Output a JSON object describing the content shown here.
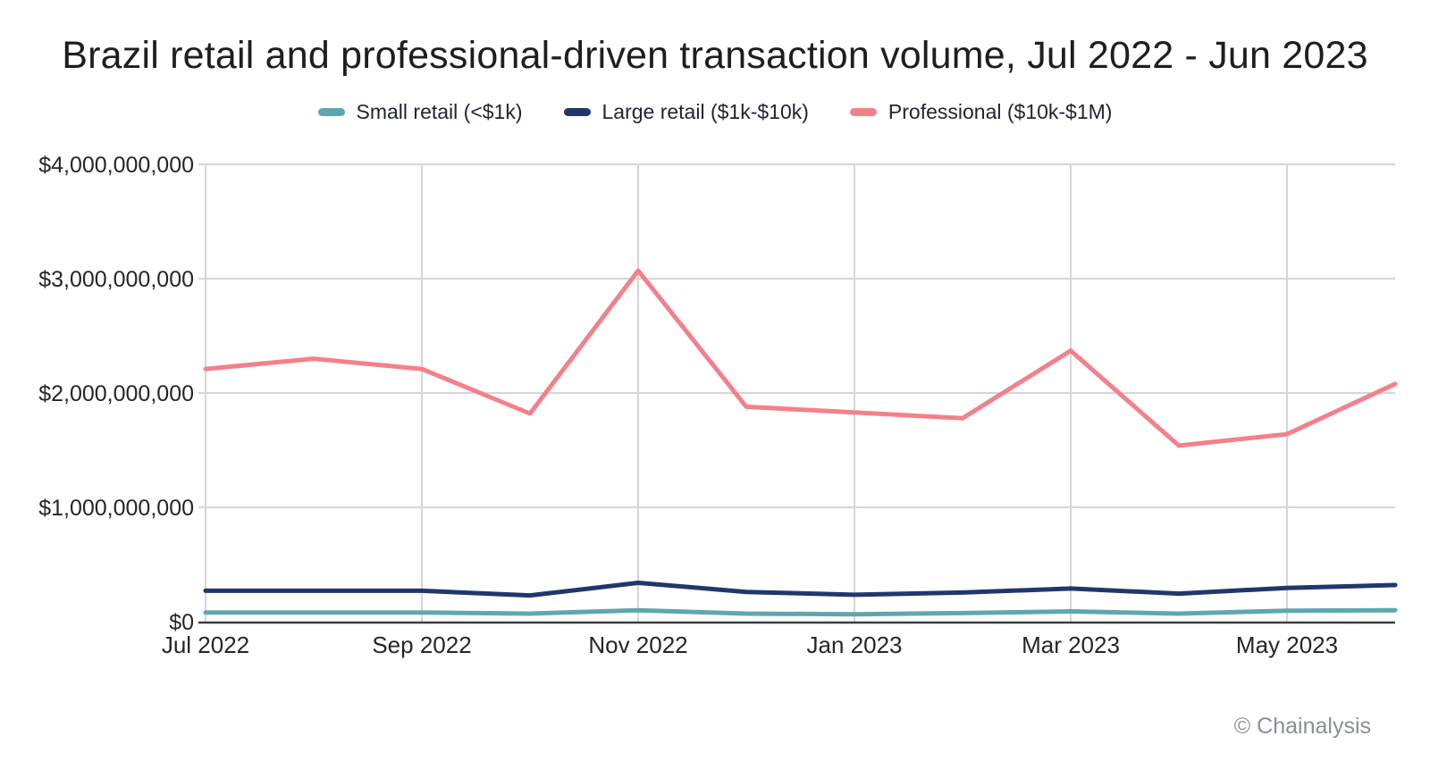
{
  "title": "Brazil retail and professional-driven transaction volume, Jul 2022 - Jun 2023",
  "footer": {
    "copyright": "© Chainalysis"
  },
  "colors": {
    "small_retail": "#5EA7AE",
    "large_retail": "#20376B",
    "professional": "#F4808A",
    "gridline": "#D6D6D6",
    "axis_line": "#3D3D3D",
    "title_text": "#1E1E1E",
    "tick_text": "#262626",
    "footer_text": "#8A8F98",
    "background": "#FFFFFF"
  },
  "chart_data": {
    "type": "line",
    "title": "Brazil retail and professional-driven transaction volume, Jul 2022 - Jun 2023",
    "xlabel": "",
    "ylabel": "",
    "x": [
      "Jul 2022",
      "Aug 2022",
      "Sep 2022",
      "Oct 2022",
      "Nov 2022",
      "Dec 2022",
      "Jan 2023",
      "Feb 2023",
      "Mar 2023",
      "Apr 2023",
      "May 2023",
      "Jun 2023"
    ],
    "x_tick_labels": [
      "Jul 2022",
      "Sep 2022",
      "Nov 2022",
      "Jan 2023",
      "Mar 2023",
      "May 2023"
    ],
    "x_tick_positions": [
      0,
      2,
      4,
      6,
      8,
      10
    ],
    "ylim": [
      0,
      4000000000
    ],
    "y_tick_values": [
      0,
      1000000000,
      2000000000,
      3000000000,
      4000000000
    ],
    "y_tick_labels": [
      "$0",
      "$1,000,000,000",
      "$2,000,000,000",
      "$3,000,000,000",
      "$4,000,000,000"
    ],
    "grid": "horizontal gridlines at each $1B; vertical gridlines every 2 months",
    "legend_position": "top-center",
    "series": [
      {
        "key": "small-retail",
        "name": "Small retail (<$1k)",
        "color": "#5EA7AE",
        "values": [
          80000000,
          80000000,
          80000000,
          70000000,
          100000000,
          70000000,
          65000000,
          75000000,
          90000000,
          70000000,
          95000000,
          100000000
        ]
      },
      {
        "key": "large-retail",
        "name": "Large retail ($1k-$10k)",
        "color": "#20376B",
        "values": [
          270000000,
          270000000,
          270000000,
          230000000,
          340000000,
          260000000,
          235000000,
          255000000,
          290000000,
          245000000,
          295000000,
          320000000
        ]
      },
      {
        "key": "professional",
        "name": "Professional ($10k-$1M)",
        "color": "#F4808A",
        "values": [
          2210000000,
          2300000000,
          2210000000,
          1820000000,
          3070000000,
          1880000000,
          1830000000,
          1780000000,
          2370000000,
          1540000000,
          1640000000,
          2080000000
        ]
      }
    ]
  }
}
